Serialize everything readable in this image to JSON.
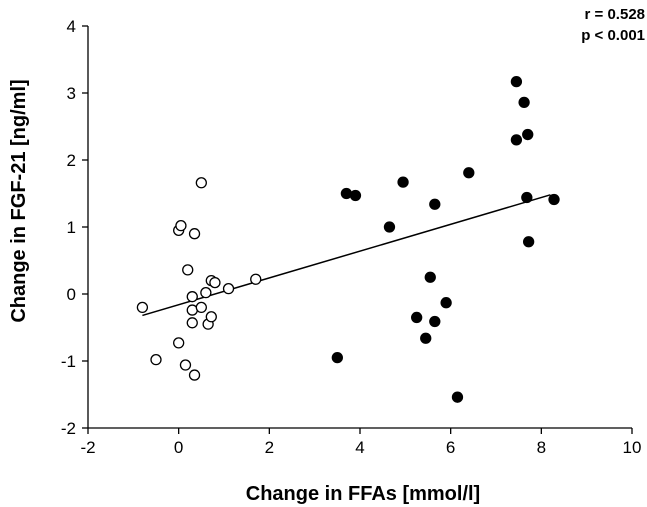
{
  "chart_data": {
    "type": "scatter",
    "xlabel": "Change in FFAs [mmol/l]",
    "ylabel": "Change in FGF-21 [ng/ml]",
    "xlim": [
      -2,
      10
    ],
    "ylim": [
      -2,
      4
    ],
    "x_ticks": [
      -2,
      0,
      2,
      4,
      6,
      8,
      10
    ],
    "y_ticks": [
      -2,
      -1,
      0,
      1,
      2,
      3,
      4
    ],
    "grid": false,
    "annotations": [
      "r  = 0.528",
      "p < 0.001"
    ],
    "series": [
      {
        "marker": "open-circle",
        "points": [
          [
            -0.8,
            -0.2
          ],
          [
            -0.5,
            -0.98
          ],
          [
            0.0,
            0.95
          ],
          [
            0.05,
            1.02
          ],
          [
            0.0,
            -0.73
          ],
          [
            0.15,
            -1.06
          ],
          [
            0.35,
            -1.21
          ],
          [
            0.35,
            0.9
          ],
          [
            0.2,
            0.36
          ],
          [
            0.3,
            -0.04
          ],
          [
            0.3,
            -0.24
          ],
          [
            0.3,
            -0.43
          ],
          [
            0.5,
            -0.2
          ],
          [
            0.5,
            1.66
          ],
          [
            0.6,
            0.02
          ],
          [
            0.65,
            -0.45
          ],
          [
            0.72,
            -0.34
          ],
          [
            0.72,
            0.2
          ],
          [
            0.8,
            0.17
          ],
          [
            1.1,
            0.08
          ],
          [
            1.7,
            0.22
          ]
        ]
      },
      {
        "marker": "filled-circle",
        "points": [
          [
            3.5,
            -0.95
          ],
          [
            3.7,
            1.5
          ],
          [
            3.9,
            1.47
          ],
          [
            4.65,
            1.0
          ],
          [
            4.95,
            1.67
          ],
          [
            5.25,
            -0.35
          ],
          [
            5.45,
            -0.66
          ],
          [
            5.55,
            0.25
          ],
          [
            5.65,
            1.34
          ],
          [
            5.65,
            -0.41
          ],
          [
            5.9,
            -0.13
          ],
          [
            6.15,
            -1.54
          ],
          [
            6.4,
            1.81
          ],
          [
            7.45,
            3.17
          ],
          [
            7.45,
            2.3
          ],
          [
            7.62,
            2.86
          ],
          [
            7.68,
            1.44
          ],
          [
            7.7,
            2.38
          ],
          [
            7.72,
            0.78
          ],
          [
            8.28,
            1.41
          ]
        ]
      }
    ],
    "regression_line": {
      "x": [
        -0.8,
        8.2
      ],
      "y": [
        -0.32,
        1.48
      ]
    }
  }
}
